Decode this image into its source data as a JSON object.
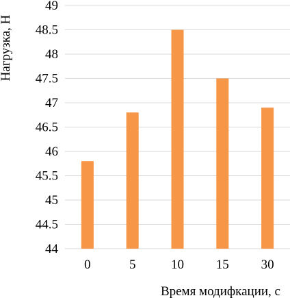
{
  "chart_data": {
    "type": "bar",
    "categories": [
      "0",
      "5",
      "10",
      "15",
      "30"
    ],
    "values": [
      45.8,
      46.8,
      48.5,
      47.5,
      46.9
    ],
    "title": "",
    "xlabel": "Время модифкации, с",
    "ylabel": "Нагрузка, Н",
    "ylim": [
      44,
      49
    ],
    "yticks": [
      "44",
      "44.5",
      "45",
      "45.5",
      "46",
      "46.5",
      "47",
      "47.5",
      "48",
      "48.5",
      "49"
    ],
    "grid": true,
    "bar_color": "#F79646",
    "grid_color": "#D9D9D9"
  }
}
